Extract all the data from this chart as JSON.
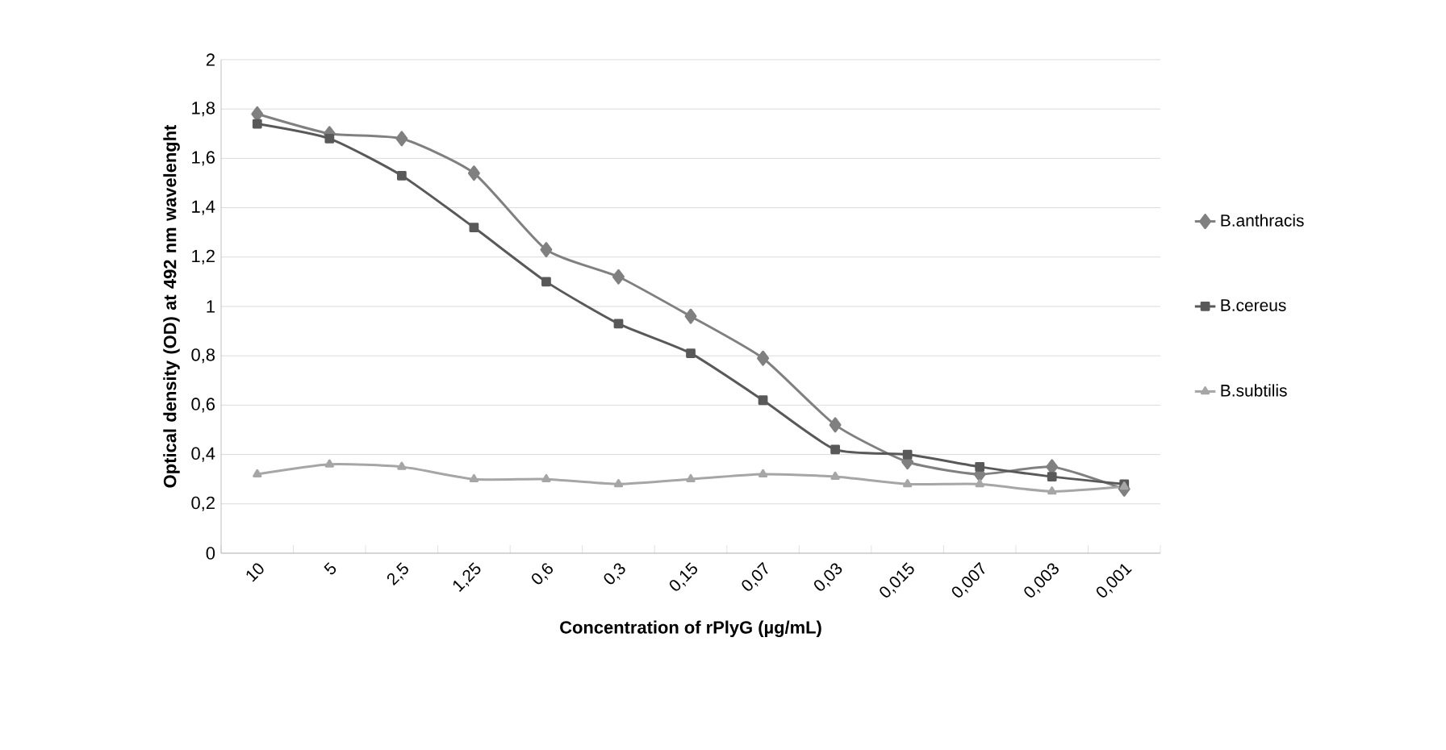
{
  "chart_data": {
    "type": "line",
    "xlabel": "Concentration of rPlyG (µg/mL)",
    "ylabel": "Optical density (OD) at 492 nm wavelenght",
    "categories": [
      "10",
      "5",
      "2,5",
      "1,25",
      "0,6",
      "0,3",
      "0,15",
      "0,07",
      "0,03",
      "0,015",
      "0,007",
      "0,003",
      "0,001"
    ],
    "series": [
      {
        "name": "B.anthracis",
        "color": "#808080",
        "marker": "diamond",
        "values": [
          1.78,
          1.7,
          1.68,
          1.54,
          1.23,
          1.12,
          0.96,
          0.79,
          0.52,
          0.37,
          0.32,
          0.35,
          0.26
        ]
      },
      {
        "name": "B.cereus",
        "color": "#595959",
        "marker": "square",
        "values": [
          1.74,
          1.68,
          1.53,
          1.32,
          1.1,
          0.93,
          0.81,
          0.62,
          0.42,
          0.4,
          0.35,
          0.31,
          0.28
        ]
      },
      {
        "name": "B.subtilis",
        "color": "#a6a6a6",
        "marker": "triangle",
        "values": [
          0.32,
          0.36,
          0.35,
          0.3,
          0.3,
          0.28,
          0.3,
          0.32,
          0.31,
          0.28,
          0.28,
          0.25,
          0.27
        ]
      }
    ],
    "ylim": [
      0,
      2
    ],
    "yticks": [
      0,
      {
        "value": 0.2,
        "label": "0,2"
      },
      {
        "value": 0.4,
        "label": "0,4"
      },
      {
        "value": 0.6,
        "label": "0,6"
      },
      {
        "value": 0.8,
        "label": "0,8"
      },
      1,
      {
        "value": 1.2,
        "label": "1,2"
      },
      {
        "value": 1.4,
        "label": "1,4"
      },
      {
        "value": 1.6,
        "label": "1,6"
      },
      {
        "value": 1.8,
        "label": "1,8"
      },
      2
    ],
    "grid": "y",
    "legend": "right",
    "line_style": "solid"
  }
}
